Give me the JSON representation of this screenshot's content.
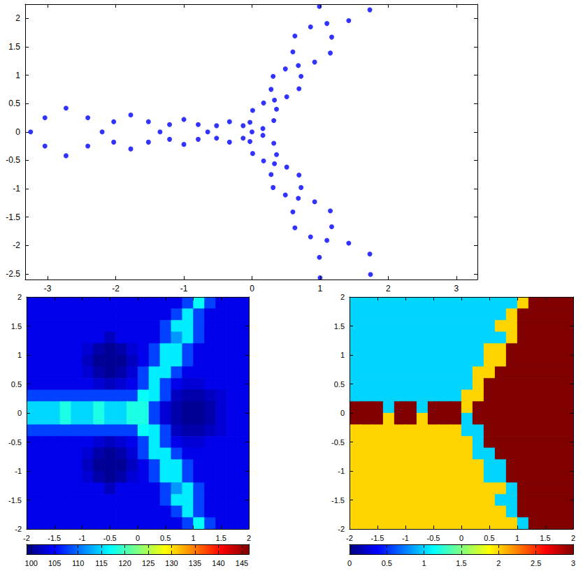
{
  "chart_data": [
    {
      "type": "scatter",
      "color": "#0000ff",
      "marker": "circle",
      "x": [
        -0.65,
        -1.35,
        -2.2,
        -3.25,
        0,
        -0.13,
        -0.13,
        -0.33,
        -0.33,
        -0.52,
        -0.52,
        -0.79,
        -0.79,
        -1.0,
        -1.0,
        -1.21,
        -1.21,
        -1.52,
        -1.52,
        -1.78,
        -1.78,
        -2.03,
        -2.03,
        -2.41,
        -2.41,
        -2.73,
        -2.73,
        -3.04,
        -3.04,
        0.33,
        0.68,
        1.1,
        0.16,
        -0.03,
        0.32,
        0.01,
        0.36,
        0.17,
        0.51,
        0.28,
        0.69,
        0.31,
        0.72,
        0.49,
        0.92,
        0.6,
        1.15,
        0.63,
        1.17,
        0.86,
        1.42,
        0.99,
        1.73,
        0.33,
        0.68,
        1.1,
        0.16,
        -0.03,
        0.32,
        0.01,
        0.36,
        0.17,
        0.51,
        0.28,
        0.69,
        0.31,
        0.72,
        0.49,
        0.92,
        0.6,
        1.15,
        0.63,
        1.17,
        0.86,
        1.42,
        0.99,
        1.73,
        1.0,
        1.74
      ],
      "y": [
        0,
        0,
        0,
        0,
        0,
        0.11,
        -0.11,
        0.18,
        -0.18,
        0.11,
        -0.11,
        0.13,
        -0.13,
        0.22,
        -0.22,
        0.13,
        -0.13,
        0.18,
        -0.18,
        0.3,
        -0.3,
        0.18,
        -0.18,
        0.25,
        -0.25,
        0.42,
        -0.42,
        0.25,
        -0.25,
        0.56,
        1.17,
        1.91,
        0.06,
        0.17,
        0.2,
        0.38,
        0.4,
        0.51,
        0.62,
        0.75,
        0.76,
        0.98,
        0.98,
        1.11,
        1.23,
        1.41,
        1.39,
        1.69,
        1.67,
        1.85,
        1.96,
        2.21,
        2.15,
        -0.56,
        -1.17,
        -1.91,
        -0.06,
        -0.17,
        -0.2,
        -0.38,
        -0.4,
        -0.51,
        -0.62,
        -0.75,
        -0.76,
        -0.98,
        -0.98,
        -1.11,
        -1.23,
        -1.41,
        -1.39,
        -1.69,
        -1.67,
        -1.85,
        -1.96,
        -2.21,
        -2.15,
        -2.57,
        -2.51
      ],
      "xlim": [
        -3.33,
        3.31
      ],
      "ylim": [
        -2.6,
        2.25
      ],
      "xticks": [
        -3,
        -2,
        -1,
        0,
        1,
        2,
        3
      ],
      "yticks": [
        -2.5,
        -2,
        -1.5,
        -1,
        -0.5,
        0,
        0.5,
        1,
        1.5,
        2
      ]
    },
    {
      "type": "heatmap",
      "x": [
        -1.9,
        -1.7,
        -1.5,
        -1.3,
        -1.1,
        -0.9,
        -0.7,
        -0.5,
        -0.3,
        -0.1,
        0.1,
        0.3,
        0.5,
        0.7,
        0.9,
        1.1,
        1.3,
        1.5,
        1.7,
        1.9
      ],
      "y": [
        1.9,
        1.7,
        1.5,
        1.3,
        1.1,
        0.9,
        0.7,
        0.5,
        0.3,
        0.1,
        -0.1,
        -0.3,
        -0.5,
        -0.7,
        -0.9,
        -1.1,
        -1.3,
        -1.5,
        -1.7,
        -1.9
      ],
      "cells": [
        [
          104,
          104,
          104,
          104,
          104,
          104,
          104,
          104,
          104,
          104,
          104,
          104,
          104,
          104,
          108,
          117,
          108,
          104,
          104,
          104
        ],
        [
          104,
          104,
          104,
          104,
          104,
          104,
          104,
          104,
          104,
          104,
          104,
          104,
          104,
          108,
          116,
          108,
          104,
          104,
          104,
          104
        ],
        [
          104,
          104,
          104,
          104,
          104,
          104,
          104,
          104,
          104,
          104,
          104,
          104,
          108,
          116,
          116,
          108,
          104,
          104,
          104,
          104
        ],
        [
          104,
          104,
          104,
          104,
          104,
          104,
          104,
          102,
          104,
          104,
          104,
          104,
          108,
          112,
          116,
          108,
          104,
          104,
          104,
          104
        ],
        [
          104,
          104,
          104,
          104,
          104,
          103,
          101,
          100,
          101,
          103,
          104,
          108,
          116,
          116,
          108,
          104,
          104,
          104,
          104,
          104
        ],
        [
          104,
          104,
          104,
          104,
          104,
          102,
          100,
          100,
          100,
          102,
          104,
          108,
          116,
          116,
          108,
          104,
          104,
          104,
          104,
          104
        ],
        [
          104,
          104,
          104,
          104,
          104,
          103,
          101,
          100,
          101,
          103,
          108,
          116,
          116,
          108,
          104,
          104,
          104,
          104,
          104,
          104
        ],
        [
          104,
          104,
          104,
          104,
          104,
          104,
          103,
          102,
          103,
          104,
          108,
          116,
          108,
          104,
          103,
          103,
          104,
          104,
          104,
          104
        ],
        [
          108,
          108,
          108,
          108,
          108,
          108,
          108,
          108,
          108,
          108,
          117,
          116,
          108,
          102,
          101,
          101,
          102,
          103,
          104,
          104
        ],
        [
          115,
          115,
          115,
          118,
          115,
          115,
          118,
          115,
          115,
          118,
          118,
          108,
          103,
          101,
          100,
          100,
          101,
          103,
          104,
          104
        ],
        [
          115,
          115,
          115,
          118,
          115,
          115,
          118,
          115,
          115,
          118,
          118,
          108,
          103,
          101,
          100,
          100,
          101,
          103,
          104,
          104
        ],
        [
          108,
          108,
          108,
          108,
          108,
          108,
          108,
          108,
          108,
          108,
          117,
          116,
          108,
          102,
          101,
          101,
          102,
          103,
          104,
          104
        ],
        [
          104,
          104,
          104,
          104,
          104,
          104,
          103,
          102,
          103,
          104,
          108,
          116,
          108,
          104,
          103,
          103,
          104,
          104,
          104,
          104
        ],
        [
          104,
          104,
          104,
          104,
          104,
          103,
          101,
          100,
          101,
          103,
          108,
          116,
          116,
          108,
          104,
          104,
          104,
          104,
          104,
          104
        ],
        [
          104,
          104,
          104,
          104,
          104,
          102,
          100,
          100,
          100,
          102,
          104,
          108,
          116,
          116,
          108,
          104,
          104,
          104,
          104,
          104
        ],
        [
          104,
          104,
          104,
          104,
          104,
          103,
          101,
          100,
          101,
          103,
          104,
          108,
          116,
          116,
          108,
          104,
          104,
          104,
          104,
          104
        ],
        [
          104,
          104,
          104,
          104,
          104,
          104,
          104,
          102,
          104,
          104,
          104,
          104,
          108,
          112,
          116,
          108,
          104,
          104,
          104,
          104
        ],
        [
          104,
          104,
          104,
          104,
          104,
          104,
          104,
          104,
          104,
          104,
          104,
          104,
          108,
          116,
          116,
          108,
          104,
          104,
          104,
          104
        ],
        [
          104,
          104,
          104,
          104,
          104,
          104,
          104,
          104,
          104,
          104,
          104,
          104,
          104,
          108,
          116,
          108,
          104,
          104,
          104,
          104
        ],
        [
          104,
          104,
          104,
          104,
          104,
          104,
          104,
          104,
          104,
          104,
          104,
          104,
          104,
          104,
          108,
          117,
          108,
          104,
          104,
          104
        ]
      ],
      "xlim": [
        -2,
        2
      ],
      "ylim": [
        -2,
        2
      ],
      "xticks": [
        -2,
        -1.5,
        -1,
        -0.5,
        0,
        0.5,
        1,
        1.5,
        2
      ],
      "yticks": [
        -2,
        -1.5,
        -1,
        -0.5,
        0,
        0.5,
        1,
        1.5,
        2
      ],
      "colorbar": {
        "range": [
          99,
          146.5
        ],
        "ticks": [
          100,
          105,
          110,
          115,
          120,
          125,
          130,
          135,
          140,
          145
        ]
      }
    },
    {
      "type": "heatmap",
      "x": [
        -1.9,
        -1.7,
        -1.5,
        -1.3,
        -1.1,
        -0.9,
        -0.7,
        -0.5,
        -0.3,
        -0.1,
        0.1,
        0.3,
        0.5,
        0.7,
        0.9,
        1.1,
        1.3,
        1.5,
        1.7,
        1.9
      ],
      "y": [
        1.9,
        1.7,
        1.5,
        1.3,
        1.1,
        0.9,
        0.7,
        0.5,
        0.3,
        0.1,
        -0.1,
        -0.3,
        -0.5,
        -0.7,
        -0.9,
        -1.1,
        -1.3,
        -1.5,
        -1.7,
        -1.9
      ],
      "cells": [
        [
          1,
          1,
          1,
          1,
          1,
          1,
          1,
          1,
          1,
          1,
          1,
          1,
          1,
          1,
          1,
          2,
          3,
          3,
          3,
          3
        ],
        [
          1,
          1,
          1,
          1,
          1,
          1,
          1,
          1,
          1,
          1,
          1,
          1,
          1,
          1,
          2,
          3,
          3,
          3,
          3,
          3
        ],
        [
          1,
          1,
          1,
          1,
          1,
          1,
          1,
          1,
          1,
          1,
          1,
          1,
          1,
          2,
          2,
          3,
          3,
          3,
          3,
          3
        ],
        [
          1,
          1,
          1,
          1,
          1,
          1,
          1,
          1,
          1,
          1,
          1,
          1,
          1,
          1,
          2,
          3,
          3,
          3,
          3,
          3
        ],
        [
          1,
          1,
          1,
          1,
          1,
          1,
          1,
          1,
          1,
          1,
          1,
          1,
          2,
          2,
          3,
          3,
          3,
          3,
          3,
          3
        ],
        [
          1,
          1,
          1,
          1,
          1,
          1,
          1,
          1,
          1,
          1,
          1,
          1,
          2,
          2,
          3,
          3,
          3,
          3,
          3,
          3
        ],
        [
          1,
          1,
          1,
          1,
          1,
          1,
          1,
          1,
          1,
          1,
          1,
          2,
          2,
          3,
          3,
          3,
          3,
          3,
          3,
          3
        ],
        [
          1,
          1,
          1,
          1,
          1,
          1,
          1,
          1,
          1,
          1,
          1,
          2,
          3,
          3,
          3,
          3,
          3,
          3,
          3,
          3
        ],
        [
          1,
          1,
          1,
          1,
          1,
          1,
          1,
          1,
          1,
          1,
          2,
          2,
          3,
          3,
          3,
          3,
          3,
          3,
          3,
          3
        ],
        [
          3,
          3,
          3,
          1,
          3,
          3,
          1,
          3,
          3,
          3,
          2,
          3,
          3,
          3,
          3,
          3,
          3,
          3,
          3,
          3
        ],
        [
          3,
          3,
          3,
          2,
          3,
          3,
          2,
          3,
          3,
          3,
          1,
          3,
          3,
          3,
          3,
          3,
          3,
          3,
          3,
          3
        ],
        [
          2,
          2,
          2,
          2,
          2,
          2,
          2,
          2,
          2,
          2,
          1,
          1,
          3,
          3,
          3,
          3,
          3,
          3,
          3,
          3
        ],
        [
          2,
          2,
          2,
          2,
          2,
          2,
          2,
          2,
          2,
          2,
          2,
          1,
          3,
          3,
          3,
          3,
          3,
          3,
          3,
          3
        ],
        [
          2,
          2,
          2,
          2,
          2,
          2,
          2,
          2,
          2,
          2,
          2,
          1,
          1,
          3,
          3,
          3,
          3,
          3,
          3,
          3
        ],
        [
          2,
          2,
          2,
          2,
          2,
          2,
          2,
          2,
          2,
          2,
          2,
          2,
          1,
          1,
          3,
          3,
          3,
          3,
          3,
          3
        ],
        [
          2,
          2,
          2,
          2,
          2,
          2,
          2,
          2,
          2,
          2,
          2,
          2,
          1,
          1,
          3,
          3,
          3,
          3,
          3,
          3
        ],
        [
          2,
          2,
          2,
          2,
          2,
          2,
          2,
          2,
          2,
          2,
          2,
          2,
          2,
          2,
          1,
          3,
          3,
          3,
          3,
          3
        ],
        [
          2,
          2,
          2,
          2,
          2,
          2,
          2,
          2,
          2,
          2,
          2,
          2,
          2,
          1,
          1,
          3,
          3,
          3,
          3,
          3
        ],
        [
          2,
          2,
          2,
          2,
          2,
          2,
          2,
          2,
          2,
          2,
          2,
          2,
          2,
          2,
          1,
          3,
          3,
          3,
          3,
          3
        ],
        [
          2,
          2,
          2,
          2,
          2,
          2,
          2,
          2,
          2,
          2,
          2,
          2,
          2,
          2,
          2,
          1,
          3,
          3,
          3,
          3
        ]
      ],
      "xlim": [
        -2,
        2
      ],
      "ylim": [
        -2,
        2
      ],
      "xticks": [
        -2,
        -1.5,
        -1,
        -0.5,
        0,
        0.5,
        1,
        1.5,
        2
      ],
      "yticks": [
        -2,
        -1.5,
        -1,
        -0.5,
        0,
        0.5,
        1,
        1.5,
        2
      ],
      "colorbar": {
        "range": [
          0,
          3
        ],
        "ticks": [
          0,
          0.5,
          1,
          1.5,
          2,
          2.5,
          3
        ]
      }
    }
  ]
}
